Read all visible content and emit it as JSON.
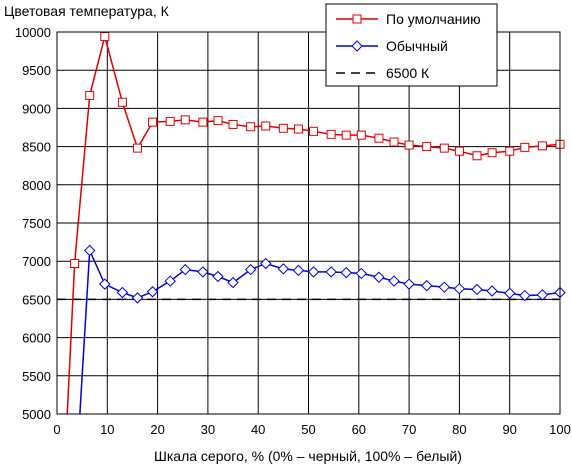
{
  "chart_data": {
    "type": "line",
    "title": "",
    "ylabel": "Цветовая температура, К",
    "xlabel": "Шкала серого, % (0% – черный, 100% – белый)",
    "xlim": [
      0,
      100
    ],
    "ylim": [
      5000,
      10000
    ],
    "xticks": [
      0,
      10,
      20,
      30,
      40,
      50,
      60,
      70,
      80,
      90,
      100
    ],
    "yticks": [
      5000,
      5500,
      6000,
      6500,
      7000,
      7500,
      8000,
      8500,
      9000,
      9500,
      10000
    ],
    "grid": true,
    "legend_position": "top-right",
    "series": [
      {
        "name": "По умолчанию",
        "color": "#e00000",
        "marker": "square",
        "x": [
          2,
          3.5,
          6.5,
          9.5,
          13,
          16,
          19,
          22.5,
          25.5,
          29,
          32,
          35,
          38.5,
          41.5,
          45,
          48,
          51,
          54.5,
          57.5,
          60.5,
          64,
          67,
          70,
          73.5,
          77,
          80,
          83.5,
          86.5,
          90,
          93,
          96.5,
          100
        ],
        "y": [
          4950,
          6970,
          9170,
          9940,
          9080,
          8480,
          8820,
          8830,
          8850,
          8820,
          8840,
          8790,
          8760,
          8770,
          8740,
          8730,
          8700,
          8660,
          8650,
          8650,
          8610,
          8560,
          8520,
          8500,
          8480,
          8440,
          8380,
          8420,
          8440,
          8490,
          8510,
          8530
        ]
      },
      {
        "name": "Обычный",
        "color": "#0000e0",
        "marker": "diamond",
        "x": [
          4.5,
          6.5,
          9.5,
          13,
          16,
          19,
          22.5,
          25.5,
          29,
          32,
          35,
          38.5,
          41.5,
          45,
          48,
          51,
          54.5,
          57.5,
          60.5,
          64,
          67,
          70,
          73.5,
          77,
          80,
          83.5,
          86.5,
          90,
          93,
          96.5,
          100
        ],
        "y": [
          4950,
          7140,
          6700,
          6590,
          6520,
          6600,
          6740,
          6890,
          6860,
          6800,
          6720,
          6890,
          6970,
          6900,
          6880,
          6860,
          6860,
          6850,
          6840,
          6790,
          6740,
          6700,
          6680,
          6660,
          6640,
          6630,
          6610,
          6580,
          6550,
          6560,
          6590
        ]
      },
      {
        "name": "6500 К",
        "color": "#000000",
        "marker": "none",
        "dashed": true,
        "x": [
          0,
          100
        ],
        "y": [
          6500,
          6500
        ]
      }
    ]
  }
}
